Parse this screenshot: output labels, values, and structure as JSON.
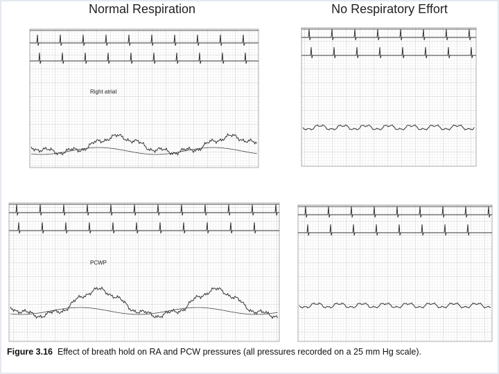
{
  "titles": [
    "Normal Respiration",
    "No Respiratory Effort"
  ],
  "labels": [
    "Right atrial",
    "PCWP"
  ],
  "caption": {
    "figure": "Figure 3.16",
    "text": "Effect of breath hold on RA and PCW pressures (all pressures recorded on a 25 mm Hg scale)."
  }
}
